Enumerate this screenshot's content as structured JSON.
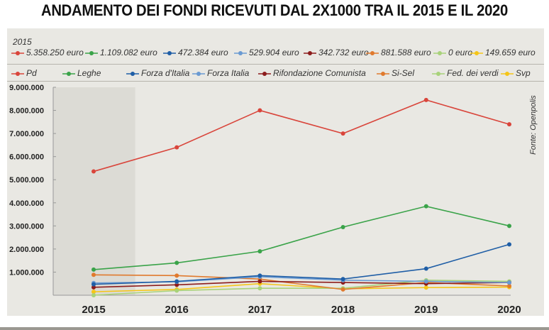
{
  "title": "ANDAMENTO DEI FONDI RICEVUTI DAL 2X1000 TRA IL 2015 E IL 2020",
  "source": "Fonte: Openpolis",
  "highlight": {
    "year_label": "2015",
    "values": [
      "5.358.250 euro",
      "1.109.082 euro",
      "472.384 euro",
      "529.904 euro",
      "342.732 euro",
      "881.588 euro",
      "0 euro",
      "149.659 euro"
    ]
  },
  "chart_data": {
    "type": "line",
    "x": [
      2015,
      2016,
      2017,
      2018,
      2019,
      2020
    ],
    "xticklabels": [
      "2015",
      "2016",
      "2017",
      "2018",
      "2019",
      "2020"
    ],
    "ylim": [
      0,
      9000000
    ],
    "yticks": [
      1000000,
      2000000,
      3000000,
      4000000,
      5000000,
      6000000,
      7000000,
      8000000,
      9000000
    ],
    "yticklabels": [
      "1.000.000",
      "2.000.000",
      "3.000.000",
      "4.000.000",
      "5.000.000",
      "6.000.000",
      "7.000.000",
      "8.000.000",
      "9.000.000"
    ],
    "highlight_range": [
      2015,
      2015.5
    ],
    "legend_position": "top",
    "series": [
      {
        "name": "Pd",
        "color": "#d9453b",
        "values": [
          5358250,
          6400000,
          8000000,
          7000000,
          8450000,
          7400000
        ]
      },
      {
        "name": "Leghe",
        "color": "#3aa349",
        "values": [
          1109082,
          1400000,
          1900000,
          2950000,
          3850000,
          3000000
        ]
      },
      {
        "name": "Forza d'Italia",
        "color": "#1f5ea6",
        "values": [
          472384,
          600000,
          850000,
          700000,
          1150000,
          2200000
        ]
      },
      {
        "name": "Forza Italia",
        "color": "#6a9ad2",
        "values": [
          529904,
          580000,
          800000,
          650000,
          600000,
          550000
        ]
      },
      {
        "name": "Rifondazione Comunista",
        "color": "#8c1c1c",
        "values": [
          342732,
          450000,
          600000,
          550000,
          500000,
          550000
        ]
      },
      {
        "name": "Si-Sel",
        "color": "#e07a2e",
        "values": [
          881588,
          850000,
          700000,
          250000,
          550000,
          400000
        ]
      },
      {
        "name": "Fed. dei verdi",
        "color": "#a8d27a",
        "values": [
          0,
          200000,
          300000,
          300000,
          650000,
          600000
        ]
      },
      {
        "name": "Svp",
        "color": "#f5c518",
        "values": [
          149659,
          250000,
          500000,
          280000,
          330000,
          350000
        ]
      }
    ]
  }
}
